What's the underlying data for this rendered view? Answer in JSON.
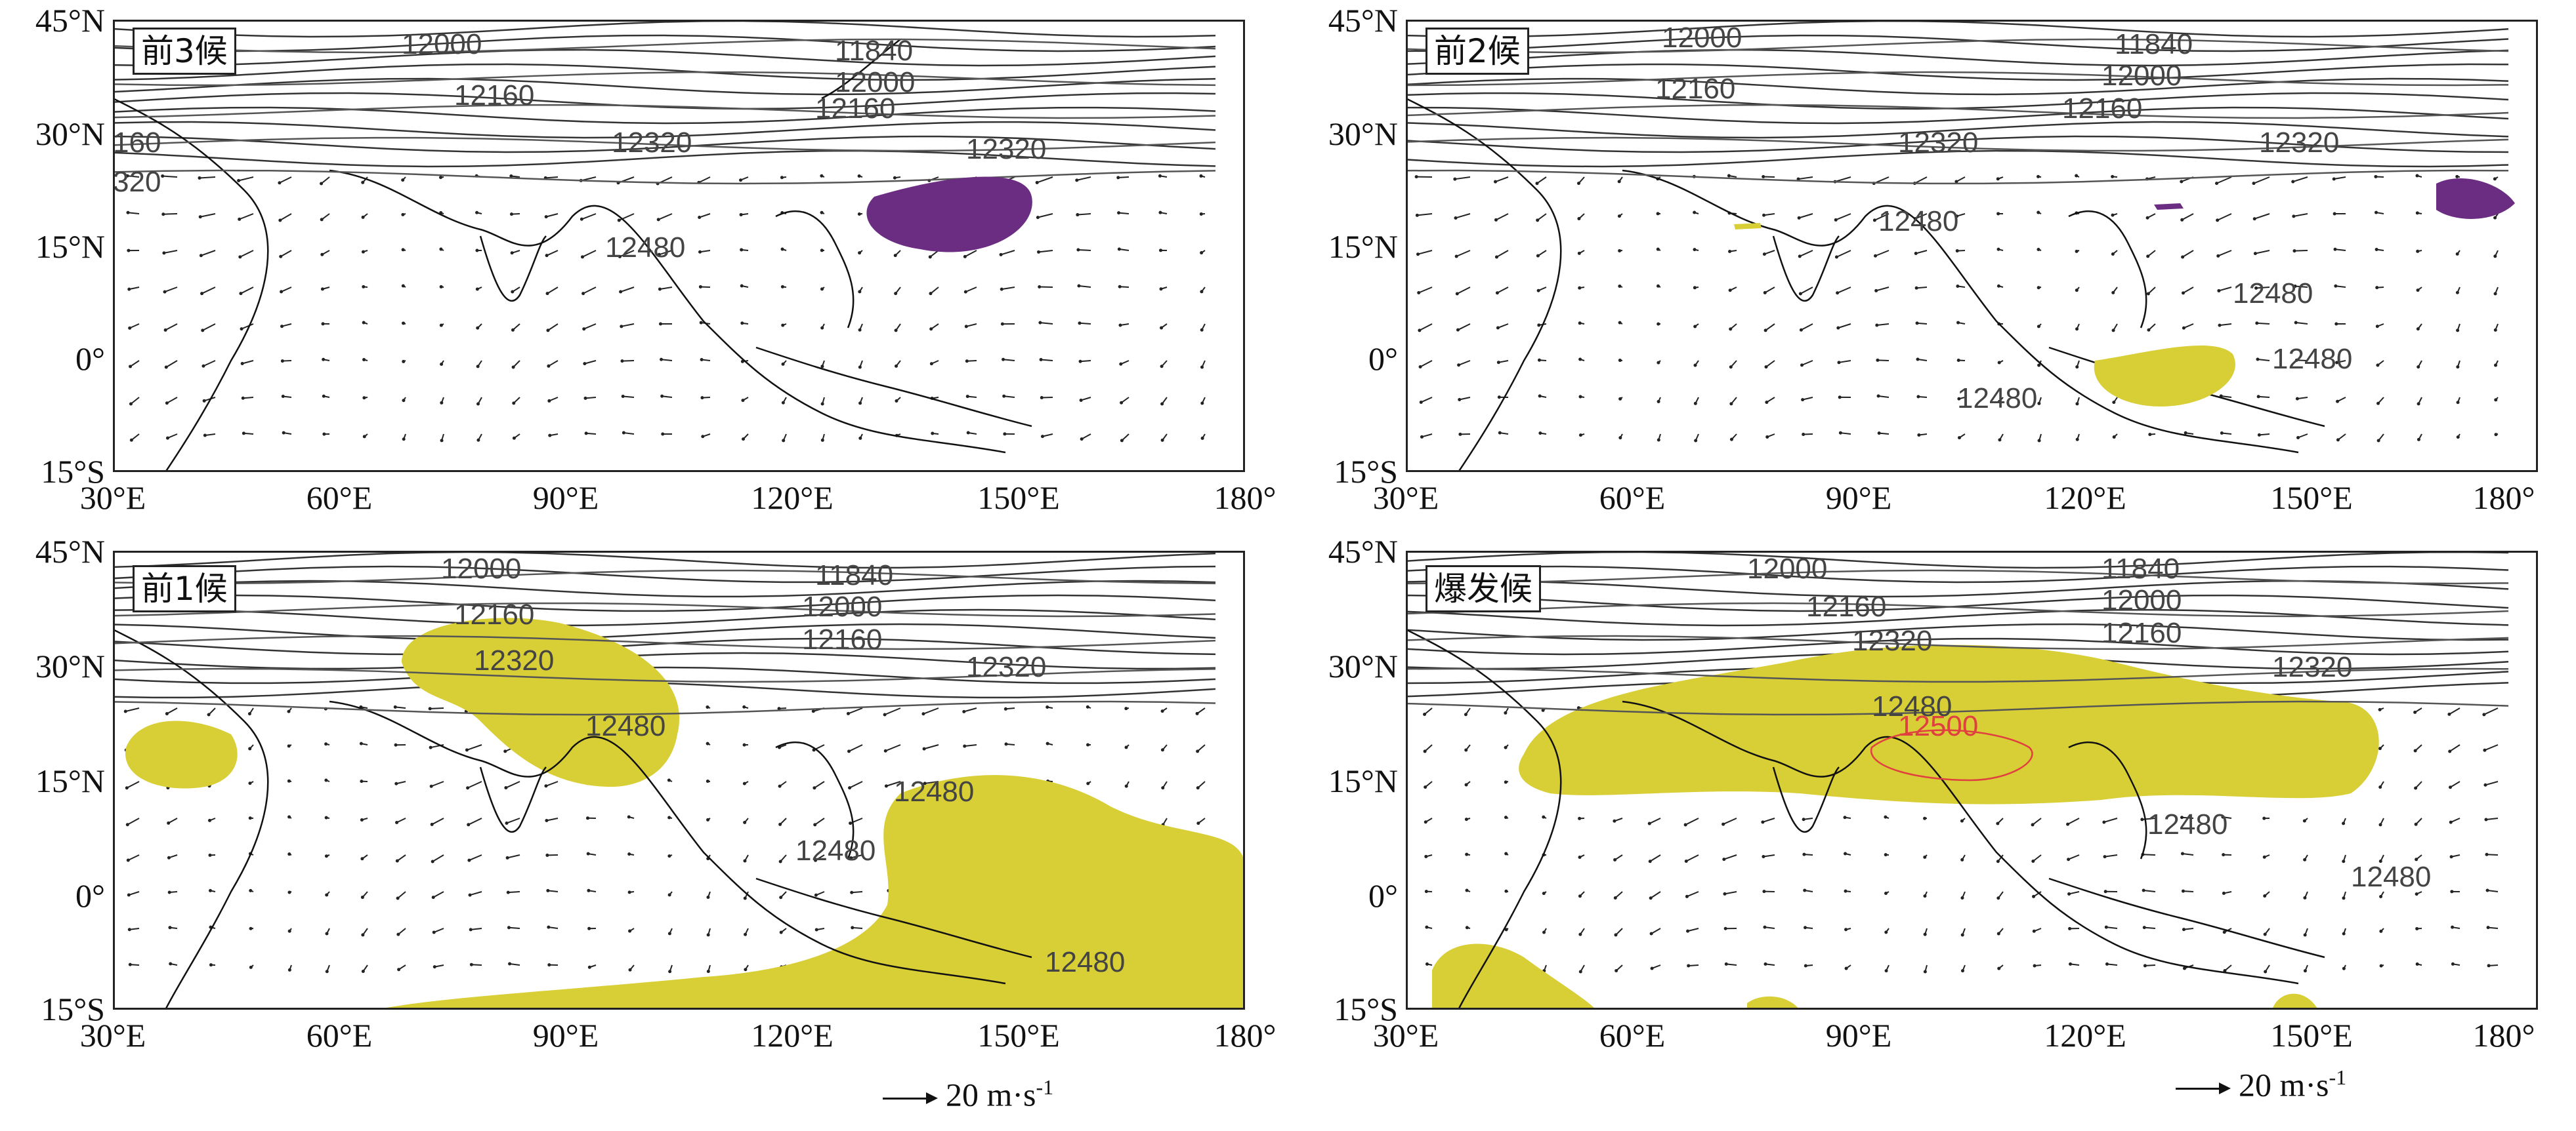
{
  "map": {
    "lat_labels": [
      "45°N",
      "30°N",
      "15°N",
      "0°",
      "15°S"
    ],
    "lon_labels": [
      "30°E",
      "60°E",
      "90°E",
      "120°E",
      "150°E",
      "180°"
    ],
    "reference_vector": {
      "value_label": "20 m·s",
      "unit_exponent": "-1"
    },
    "colors": {
      "shade_yellow": "#d8ce35",
      "shade_purple": "#6b2d82",
      "contour": "#444444",
      "highlight_contour": "#e04040",
      "vector": "#222222"
    },
    "panels": [
      {
        "label": "前3候",
        "contours": [
          "12000",
          "11840",
          "12000",
          "12160",
          "12160",
          "12320",
          "12320",
          "160",
          "320",
          "12480"
        ]
      },
      {
        "label": "前2候",
        "contours": [
          "12000",
          "11840",
          "12000",
          "12160",
          "12160",
          "12320",
          "12320",
          "12480",
          "12480",
          "12480",
          "12480"
        ]
      },
      {
        "label": "前1候",
        "contours": [
          "12000",
          "11840",
          "12000",
          "12160",
          "12160",
          "12320",
          "12320",
          "12480",
          "12480",
          "12480",
          "12480"
        ]
      },
      {
        "label": "爆发候",
        "contours": [
          "12000",
          "11840",
          "12000",
          "12160",
          "12160",
          "12320",
          "12320",
          "12480",
          "12500",
          "12480",
          "12480"
        ]
      }
    ]
  }
}
